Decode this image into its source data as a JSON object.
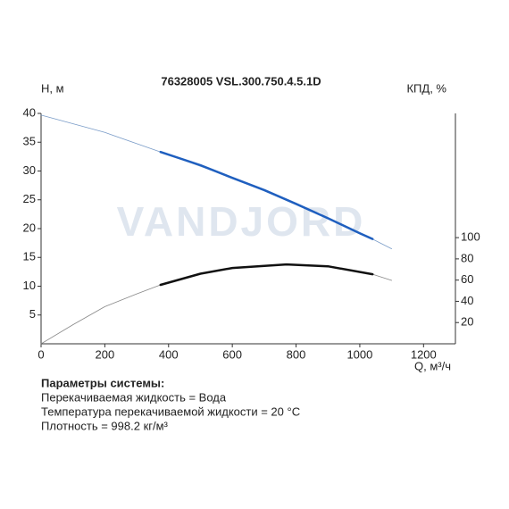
{
  "chart_data": {
    "type": "line",
    "title": "76328005 VSL.300.750.4.5.1D",
    "ylabel": "H, м",
    "y2label": "КПД, %",
    "xlabel": "Q, м³/ч",
    "watermark": "VANDJORD",
    "xlim": [
      0,
      1300
    ],
    "xticks": [
      0,
      200,
      400,
      600,
      800,
      1000,
      1200
    ],
    "ylim": [
      0,
      40
    ],
    "yticks": [
      5,
      10,
      15,
      20,
      25,
      30,
      35,
      40
    ],
    "y2lim": [
      0,
      217
    ],
    "y2ticks": [
      20,
      40,
      60,
      80,
      100
    ],
    "series": [
      {
        "color": "#7a9cc8",
        "width": 0.8,
        "x": [
          0,
          200,
          400,
          600,
          800,
          1000,
          1100
        ],
        "values": [
          39.7,
          36.7,
          32.8,
          28.8,
          24.3,
          19.3,
          16.5
        ]
      },
      {
        "color": "#1f5fbf",
        "width": 2.5,
        "x": [
          375,
          500,
          600,
          700,
          800,
          900,
          1000,
          1040
        ],
        "values": [
          33.3,
          31,
          28.8,
          26.7,
          24.3,
          21.8,
          19.2,
          18.2
        ]
      },
      {
        "color": "#888888",
        "width": 0.8,
        "axis": "y2",
        "x": [
          0,
          100,
          200,
          300,
          375,
          500,
          600,
          770,
          900,
          1040,
          1100
        ],
        "values": [
          0,
          18,
          35,
          47,
          55.5,
          66,
          71.4,
          74.8,
          73,
          65.5,
          59.7
        ]
      },
      {
        "color": "#111111",
        "width": 2.5,
        "axis": "y2",
        "x": [
          375,
          500,
          600,
          770,
          900,
          1040
        ],
        "values": [
          55.5,
          66,
          71.4,
          74.8,
          73,
          65.5
        ]
      }
    ]
  },
  "parameters": {
    "heading": "Параметры системы:",
    "lines": [
      "Перекачиваемая жидкость = Вода",
      "Температура перекачиваемой жидкости = 20 °C",
      "Плотность = 998.2 кг/м³"
    ]
  }
}
